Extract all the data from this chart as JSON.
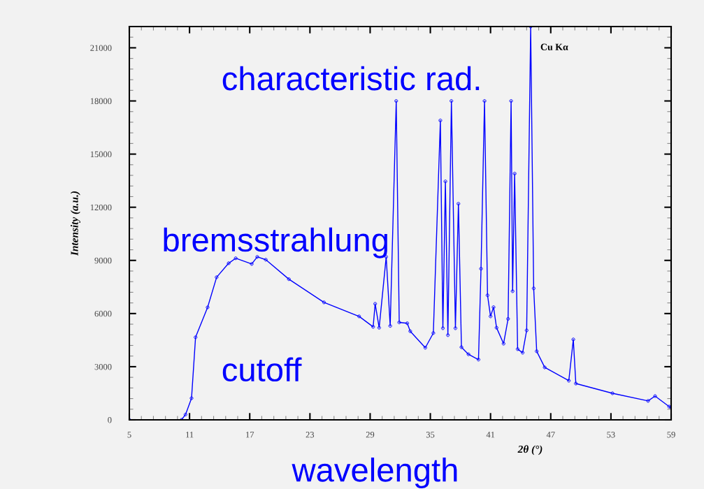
{
  "chart_data": {
    "type": "line",
    "xlabel": "2θ (°)",
    "ylabel": "Intensity (a.u.)",
    "x": [
      5,
      10.2,
      10.6,
      11.2,
      11.6,
      12.8,
      13.7,
      14.9,
      15.6,
      17.2,
      17.75,
      18.6,
      20.9,
      24.4,
      27.9,
      29.3,
      29.5,
      29.9,
      30.6,
      31.0,
      31.6,
      31.9,
      32.7,
      33.0,
      34.5,
      35.3,
      36.0,
      36.25,
      36.5,
      36.75,
      37.1,
      37.5,
      37.8,
      38.1,
      38.8,
      39.8,
      40.05,
      40.4,
      40.7,
      41.0,
      41.3,
      41.6,
      42.3,
      42.75,
      43.05,
      43.2,
      43.4,
      43.7,
      44.2,
      44.6,
      45.0,
      45.3,
      45.6,
      46.4,
      48.8,
      49.25,
      49.5,
      53.15,
      56.7,
      57.4,
      58.8,
      59
    ],
    "series": [
      {
        "color": "#0000ff",
        "values": [
          0,
          0,
          300,
          1220,
          4660,
          6350,
          8050,
          8840,
          9120,
          8800,
          9200,
          9040,
          7940,
          6630,
          5840,
          5250,
          6550,
          5200,
          9200,
          5300,
          18000,
          5500,
          5450,
          5000,
          4070,
          4900,
          16900,
          5170,
          13460,
          4780,
          18000,
          5170,
          12200,
          4100,
          3700,
          3400,
          8530,
          18000,
          7030,
          5840,
          6360,
          5200,
          4300,
          5700,
          18000,
          7260,
          13900,
          3990,
          3790,
          5050,
          22200,
          7420,
          3870,
          2960,
          2210,
          4540,
          2050,
          1500,
          1070,
          1340,
          750,
          700
        ]
      }
    ],
    "xlim": [
      5,
      59
    ],
    "ylim": [
      0,
      22200
    ],
    "xticks": [
      5,
      11,
      17,
      23,
      29,
      35,
      41,
      47,
      53,
      59
    ],
    "yticks": [
      0,
      3000,
      6000,
      9000,
      12000,
      15000,
      18000,
      21000
    ],
    "marker": "circle",
    "line_style": "solid",
    "grid": false,
    "annotations": [
      {
        "text": "Cu Kα",
        "x": 45.0,
        "y": 21000
      },
      "characteristic rad.",
      "bremsstrahlung",
      "cutoff",
      "wavelength"
    ]
  }
}
